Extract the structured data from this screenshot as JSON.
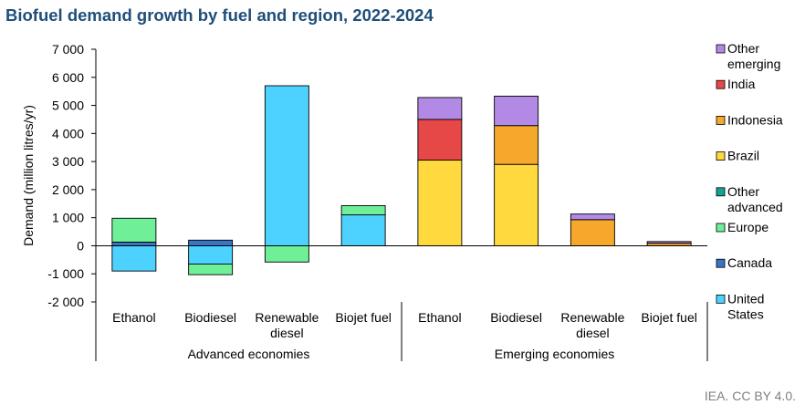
{
  "chart_data": {
    "type": "bar",
    "stacked": true,
    "title": "Biofuel demand growth by fuel and region, 2022-2024",
    "ylabel": "Demand (million litres/yr)",
    "xlabel": "",
    "ylim": [
      -2000,
      7000
    ],
    "yticks": [
      -2000,
      -1000,
      0,
      1000,
      2000,
      3000,
      4000,
      5000,
      6000,
      7000
    ],
    "ytick_labels": [
      "-2 000",
      "-1 000",
      "0",
      "1 000",
      "2 000",
      "3 000",
      "4 000",
      "5 000",
      "6 000",
      "7 000"
    ],
    "grid": false,
    "legend_position": "right",
    "groups": [
      {
        "label": "Advanced economies",
        "categories": [
          "Ethanol",
          "Biodiesel",
          "Renewable diesel",
          "Biojet fuel"
        ]
      },
      {
        "label": "Emerging economies",
        "categories": [
          "Ethanol",
          "Biodiesel",
          "Renewable diesel",
          "Biojet fuel"
        ]
      }
    ],
    "categories": [
      "Ethanol",
      "Biodiesel",
      "Renewable diesel",
      "Biojet fuel",
      "Ethanol",
      "Biodiesel",
      "Renewable diesel",
      "Biojet fuel"
    ],
    "series": [
      {
        "name": "United States",
        "color": "#4dd2ff",
        "values": [
          -900,
          -650,
          5700,
          1100,
          0,
          0,
          0,
          0
        ]
      },
      {
        "name": "Canada",
        "color": "#3a75c4",
        "values": [
          130,
          200,
          0,
          0,
          0,
          0,
          0,
          0
        ]
      },
      {
        "name": "Europe",
        "color": "#6ff098",
        "values": [
          850,
          -380,
          -580,
          330,
          0,
          0,
          0,
          0
        ]
      },
      {
        "name": "Other advanced",
        "color": "#15a38f",
        "values": [
          0,
          0,
          0,
          0,
          0,
          0,
          0,
          0
        ]
      },
      {
        "name": "Brazil",
        "color": "#ffd93d",
        "values": [
          0,
          0,
          0,
          0,
          3050,
          2900,
          0,
          0
        ]
      },
      {
        "name": "Indonesia",
        "color": "#f5a82b",
        "values": [
          0,
          0,
          0,
          0,
          0,
          1380,
          930,
          90
        ]
      },
      {
        "name": "India",
        "color": "#e64848",
        "values": [
          0,
          0,
          0,
          0,
          1450,
          0,
          0,
          0
        ]
      },
      {
        "name": "Other emerging",
        "color": "#b28ae6",
        "values": [
          0,
          0,
          0,
          0,
          780,
          1050,
          200,
          60
        ]
      }
    ]
  },
  "credit": "IEA. CC BY 4.0."
}
